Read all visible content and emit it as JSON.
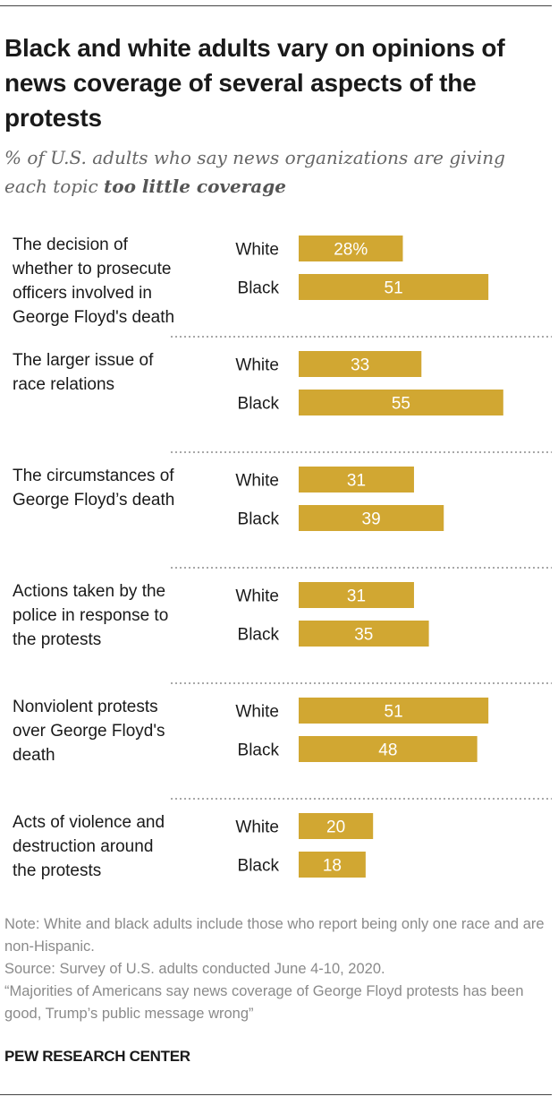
{
  "header": {
    "title": "Black and white adults vary on opinions of news coverage of several aspects of the protests",
    "subtitle_prefix": "% of U.S. adults who say news organizations are giving each topic ",
    "subtitle_emphasis": "too little coverage"
  },
  "chart_data": {
    "type": "bar",
    "orientation": "horizontal",
    "categories": [
      "The decision of whether to prosecute officers involved in George Floyd's death",
      "The larger issue of race relations",
      "The circumstances of George Floyd’s death",
      "Actions taken by the police in response to the protests",
      "Nonviolent protests over George Floyd's death",
      "Acts of violence and destruction around the protests"
    ],
    "series": [
      {
        "name": "White",
        "values": [
          28,
          33,
          31,
          31,
          51,
          20
        ]
      },
      {
        "name": "Black",
        "values": [
          51,
          55,
          39,
          35,
          48,
          18
        ]
      }
    ],
    "value_labels": {
      "White": [
        "28%",
        "33",
        "31",
        "31",
        "51",
        "20"
      ],
      "Black": [
        "51",
        "55",
        "39",
        "35",
        "48",
        "18"
      ]
    },
    "xlim": [
      0,
      100
    ],
    "bar_color": "#d1a732",
    "label_color": "#ffffff",
    "grid": false
  },
  "footer": {
    "note": "Note: White and black adults include those who report being only one race and are non-Hispanic.",
    "source": "Source: Survey of U.S. adults conducted June 4-10, 2020.",
    "report": "“Majorities of Americans say news coverage of George Floyd protests has been good, Trump’s public message wrong”",
    "brand": "PEW RESEARCH CENTER"
  }
}
